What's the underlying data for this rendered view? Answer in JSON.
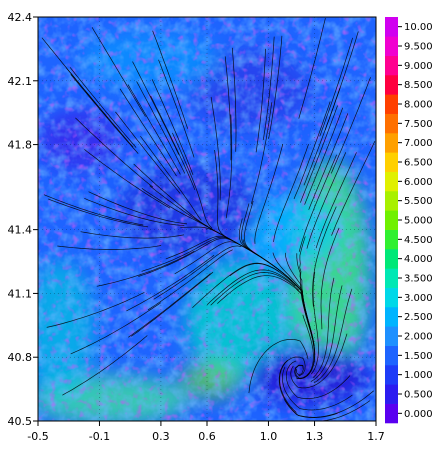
{
  "chart_data": {
    "type": "heatmap",
    "title": "",
    "xlabel": "",
    "ylabel": "",
    "xlim": [
      -0.5,
      1.7
    ],
    "ylim": [
      40.5,
      42.4
    ],
    "x_ticks": [
      "-0.5",
      "-0.1",
      "0.3",
      "0.6",
      "1.0",
      "1.3",
      "1.7"
    ],
    "x_tick_values": [
      -0.5,
      -0.1,
      0.3,
      0.6,
      1.0,
      1.3,
      1.7
    ],
    "y_ticks": [
      "40.5",
      "40.8",
      "41.1",
      "41.4",
      "41.8",
      "42.1",
      "42.4"
    ],
    "y_tick_values": [
      40.5,
      40.8,
      41.1,
      41.4,
      41.8,
      42.1,
      42.4
    ],
    "overlay": "streamlines",
    "grid": "dotted",
    "colorbar": {
      "placement": "right",
      "labels": [
        "0.000",
        "0.500",
        "1.000",
        "1.500",
        "2.000",
        "2.500",
        "3.000",
        "3.500",
        "4.000",
        "4.500",
        "5.000",
        "5.500",
        "6.000",
        "6.500",
        "7.000",
        "7.500",
        "8.000",
        "8.500",
        "9.000",
        "9.500",
        "10.00"
      ],
      "colors": [
        "#5a00f0",
        "#2c1cf0",
        "#1e3cf8",
        "#1e64ff",
        "#1e90ff",
        "#00b4ff",
        "#00d8e8",
        "#00e8b4",
        "#00e878",
        "#30f030",
        "#70f000",
        "#a8f000",
        "#e0f000",
        "#ffd000",
        "#ffa000",
        "#ff7000",
        "#ff4000",
        "#ff0040",
        "#ff0090",
        "#f000d0",
        "#d000f0"
      ]
    },
    "field_description_regions": [
      {
        "x": 0.5,
        "y": 41.5,
        "level": 0.5
      },
      {
        "x": 1.35,
        "y": 40.75,
        "level": 0.5
      },
      {
        "x": 1.55,
        "y": 41.2,
        "level": 4.5
      },
      {
        "x": 0.1,
        "y": 40.65,
        "level": 3.5
      },
      {
        "x": 0.85,
        "y": 41.9,
        "level": 1.5
      }
    ]
  }
}
